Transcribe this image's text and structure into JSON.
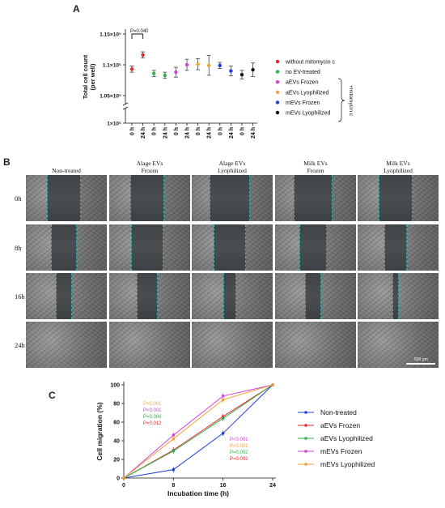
{
  "panel_a": {
    "letter": "A",
    "chart_data": {
      "type": "scatter",
      "ylabel": "Total cell count (per well)",
      "ylabel_lines": [
        "Total cell count",
        "(per well)"
      ],
      "y_ticks": [
        "1.15×10⁵",
        "1.1×10⁵",
        "1.05×10⁵",
        "1×10⁵"
      ],
      "y_scale": "broken axis",
      "x_ticks": [
        "0 h",
        "24 h",
        "0 h",
        "24 h",
        "0 h",
        "24 h",
        "0 h",
        "24 h",
        "0 h",
        "24 h",
        "0 h",
        "24 h"
      ],
      "annotation": "P=0.040",
      "bracket_label": "+mitomycin c",
      "series": [
        {
          "name": "without mitomycin c",
          "color": "#e8262c",
          "points": [
            {
              "x": "0 h",
              "y": 109300,
              "err": 500
            },
            {
              "x": "24 h",
              "y": 111600,
              "err": 500
            }
          ]
        },
        {
          "name": "no EV-treated",
          "color": "#2fb34a",
          "points": [
            {
              "x": "0 h",
              "y": 108600,
              "err": 500
            },
            {
              "x": "24 h",
              "y": 108300,
              "err": 500
            }
          ]
        },
        {
          "name": "aEVs Frozen",
          "color": "#d63fd6",
          "points": [
            {
              "x": "0 h",
              "y": 108800,
              "err": 800
            },
            {
              "x": "24 h",
              "y": 110000,
              "err": 900
            }
          ]
        },
        {
          "name": "aEVs Lyophilized",
          "color": "#f2a23a",
          "points": [
            {
              "x": "0 h",
              "y": 110100,
              "err": 900
            },
            {
              "x": "24 h",
              "y": 109900,
              "err": 1600
            }
          ]
        },
        {
          "name": "mEVs Frozen",
          "color": "#1f3fd6",
          "points": [
            {
              "x": "0 h",
              "y": 109900,
              "err": 500
            },
            {
              "x": "24 h",
              "y": 109000,
              "err": 800
            }
          ]
        },
        {
          "name": "mEVs Lyophilized",
          "color": "#111111",
          "points": [
            {
              "x": "0 h",
              "y": 108400,
              "err": 700
            },
            {
              "x": "24 h",
              "y": 109200,
              "err": 1100
            }
          ]
        }
      ]
    }
  },
  "panel_b": {
    "letter": "B",
    "columns": [
      [
        "Non-treated"
      ],
      [
        "Alage EVs",
        "Frozen"
      ],
      [
        "Alage EVs",
        "Lyophilized"
      ],
      [
        "Milk EVs",
        "Frozen"
      ],
      [
        "Milk EVs",
        "Lyophilized"
      ]
    ],
    "rows": [
      "0h",
      "8h",
      "16h",
      "24h"
    ],
    "gap_fraction": [
      [
        0.4,
        0.4,
        0.48,
        0.46,
        0.4
      ],
      [
        0.3,
        0.38,
        0.38,
        0.32,
        0.26
      ],
      [
        0.18,
        0.24,
        0.14,
        0.18,
        0.06
      ],
      [
        0,
        0,
        0,
        0,
        0
      ]
    ],
    "scale_bar": "500 μm"
  },
  "panel_c": {
    "letter": "C",
    "chart_data": {
      "type": "line",
      "xlabel": "Incubation time (h)",
      "ylabel": "Cell migration (%)",
      "x": [
        0,
        8,
        16,
        24
      ],
      "xlim": [
        0,
        24
      ],
      "ylim": [
        0,
        100
      ],
      "x_ticks": [
        "0",
        "8",
        "16",
        "24"
      ],
      "y_ticks": [
        "0",
        "20",
        "40",
        "60",
        "80",
        "100"
      ],
      "legend_position": "right",
      "series": [
        {
          "name": "Non-treated",
          "color": "#1f3fd6",
          "values": [
            0,
            9,
            48,
            100
          ]
        },
        {
          "name": "aEVs Frozen",
          "color": "#e8262c",
          "values": [
            0,
            30,
            66,
            100
          ]
        },
        {
          "name": "aEVs Lyophilized",
          "color": "#2fb34a",
          "values": [
            0,
            29,
            64,
            100
          ]
        },
        {
          "name": "mEVs Frozen",
          "color": "#d63fd6",
          "values": [
            0,
            46,
            88,
            100
          ]
        },
        {
          "name": "mEVs Lyophilized",
          "color": "#f2a23a",
          "values": [
            0,
            42,
            84,
            100
          ]
        }
      ],
      "p_values_8h": [
        {
          "text": "P<0.001",
          "color": "#f2a23a"
        },
        {
          "text": "P<0.001",
          "color": "#d63fd6"
        },
        {
          "text": "P=0.006",
          "color": "#2fb34a"
        },
        {
          "text": "P=0.012",
          "color": "#e8262c"
        }
      ],
      "p_values_16h": [
        {
          "text": "P<0.001",
          "color": "#d63fd6"
        },
        {
          "text": "P<0.001",
          "color": "#f2a23a"
        },
        {
          "text": "P=0.002",
          "color": "#2fb34a"
        },
        {
          "text": "P=0.002",
          "color": "#e8262c"
        }
      ]
    }
  }
}
